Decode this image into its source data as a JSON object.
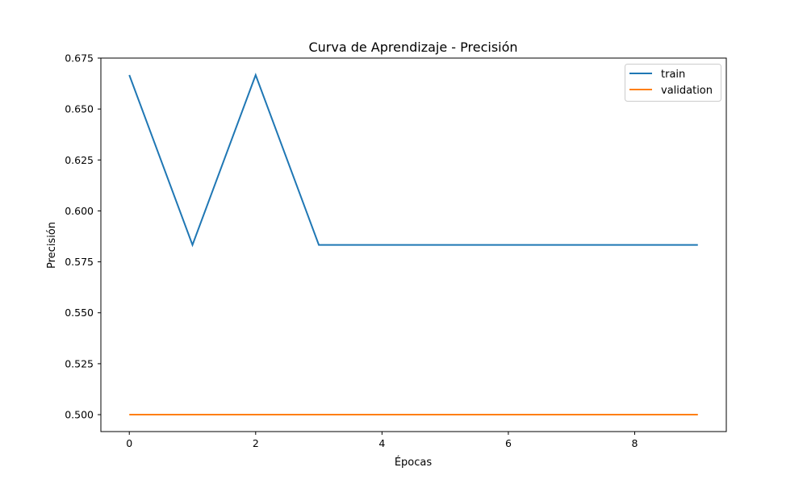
{
  "chart_data": {
    "type": "line",
    "title": "Curva de Aprendizaje - Precisión",
    "xlabel": "Épocas",
    "ylabel": "Precisión",
    "x": [
      0,
      1,
      2,
      3,
      4,
      5,
      6,
      7,
      8,
      9
    ],
    "series": [
      {
        "name": "train",
        "color": "#1f77b4",
        "values": [
          0.6667,
          0.5833,
          0.6667,
          0.5833,
          0.5833,
          0.5833,
          0.5833,
          0.5833,
          0.5833,
          0.5833
        ]
      },
      {
        "name": "validation",
        "color": "#ff7f0e",
        "values": [
          0.5,
          0.5,
          0.5,
          0.5,
          0.5,
          0.5,
          0.5,
          0.5,
          0.5,
          0.5
        ]
      }
    ],
    "xlim": [
      -0.45,
      9.45
    ],
    "ylim": [
      0.4917,
      0.675
    ],
    "xticks": [
      0,
      2,
      4,
      6,
      8
    ],
    "xtick_labels": [
      "0",
      "2",
      "4",
      "6",
      "8"
    ],
    "yticks": [
      0.5,
      0.525,
      0.55,
      0.575,
      0.6,
      0.625,
      0.65,
      0.675
    ],
    "ytick_labels": [
      "0.500",
      "0.525",
      "0.550",
      "0.575",
      "0.600",
      "0.625",
      "0.650",
      "0.675"
    ],
    "grid": false,
    "legend_position": "upper right"
  }
}
